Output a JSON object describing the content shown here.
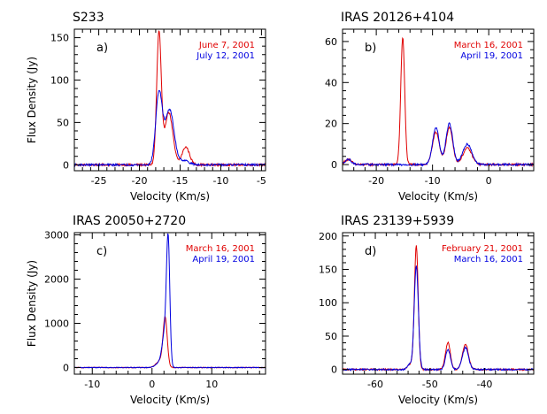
{
  "colors": {
    "red": "#e00000",
    "blue": "#0000e0",
    "axis": "#000000"
  },
  "chart_data": [
    {
      "type": "line",
      "title": "S233",
      "panel_label": "a)",
      "xlabel": "Velocity (Km/s)",
      "ylabel": "Flux Density (Jy)",
      "xlim": [
        -28,
        -4.5
      ],
      "ylim": [
        -7,
        160
      ],
      "xticks": [
        -25,
        -20,
        -15,
        -10,
        -5
      ],
      "yticks": [
        0,
        50,
        100,
        150
      ],
      "series": [
        {
          "name": "June 7, 2001",
          "color": "red",
          "baseline": 0,
          "noise": 1.2,
          "components": [
            [
              -17.6,
              155,
              0.28
            ],
            [
              -16.4,
              62,
              0.5
            ],
            [
              -14.3,
              21,
              0.45
            ]
          ]
        },
        {
          "name": "July 12, 2001",
          "color": "blue",
          "baseline": 0,
          "noise": 1.2,
          "components": [
            [
              -17.6,
              84,
              0.4
            ],
            [
              -16.3,
              65,
              0.55
            ],
            [
              -14.5,
              5,
              0.6
            ]
          ]
        }
      ]
    },
    {
      "type": "line",
      "title": "IRAS 20126+4104",
      "panel_label": "b)",
      "xlabel": "Velocity (Km/s)",
      "ylabel": "",
      "xlim": [
        -26,
        8
      ],
      "ylim": [
        -3,
        66
      ],
      "xticks": [
        -20,
        -10,
        0
      ],
      "yticks": [
        0,
        20,
        40,
        60
      ],
      "series": [
        {
          "name": "March 16, 2001",
          "color": "red",
          "baseline": 0,
          "noise": 0.5,
          "components": [
            [
              -25,
              2.5,
              0.6
            ],
            [
              -15.3,
              62,
              0.35
            ],
            [
              -9.4,
              16,
              0.6
            ],
            [
              -7.0,
              18,
              0.6
            ],
            [
              -3.8,
              8,
              0.8
            ]
          ]
        },
        {
          "name": "April 19, 2001",
          "color": "blue",
          "baseline": 0,
          "noise": 0.5,
          "components": [
            [
              -25,
              2.5,
              0.6
            ],
            [
              -9.4,
              18,
              0.6
            ],
            [
              -7.0,
              20,
              0.6
            ],
            [
              -3.8,
              10,
              0.8
            ]
          ]
        }
      ]
    },
    {
      "type": "line",
      "title": "IRAS 20050+2720",
      "panel_label": "c)",
      "xlabel": "Velocity (Km/s)",
      "ylabel": "Flux Density (Jy)",
      "xlim": [
        -13,
        19
      ],
      "ylim": [
        -150,
        3050
      ],
      "xticks": [
        -10,
        0,
        10
      ],
      "yticks": [
        0,
        1000,
        2000,
        3000
      ],
      "series": [
        {
          "name": "March 16, 2001",
          "color": "red",
          "baseline": 0,
          "noise": 8,
          "components": [
            [
              2.2,
              1100,
              0.35
            ],
            [
              1.3,
              150,
              0.6
            ]
          ]
        },
        {
          "name": "April 19, 2001",
          "color": "blue",
          "baseline": 0,
          "noise": 8,
          "components": [
            [
              2.7,
              2800,
              0.28
            ],
            [
              2.1,
              700,
              0.4
            ],
            [
              1.3,
              120,
              0.6
            ]
          ]
        }
      ]
    },
    {
      "type": "line",
      "title": "IRAS 23139+5939",
      "panel_label": "d)",
      "xlabel": "Velocity (Km/s)",
      "ylabel": "",
      "xlim": [
        -66,
        -31
      ],
      "ylim": [
        -7,
        205
      ],
      "xticks": [
        -60,
        -50,
        -40
      ],
      "yticks": [
        0,
        50,
        100,
        150,
        200
      ],
      "series": [
        {
          "name": "February 21, 2001",
          "color": "red",
          "baseline": 0,
          "noise": 1.2,
          "components": [
            [
              -53.7,
              8,
              0.4
            ],
            [
              -52.5,
              185,
              0.35
            ],
            [
              -46.7,
              40,
              0.45
            ],
            [
              -43.5,
              38,
              0.55
            ]
          ]
        },
        {
          "name": "March 16, 2001",
          "color": "blue",
          "baseline": 0,
          "noise": 1.2,
          "components": [
            [
              -53.7,
              8,
              0.4
            ],
            [
              -52.5,
              155,
              0.38
            ],
            [
              -46.7,
              30,
              0.45
            ],
            [
              -43.5,
              33,
              0.55
            ]
          ]
        }
      ]
    }
  ]
}
